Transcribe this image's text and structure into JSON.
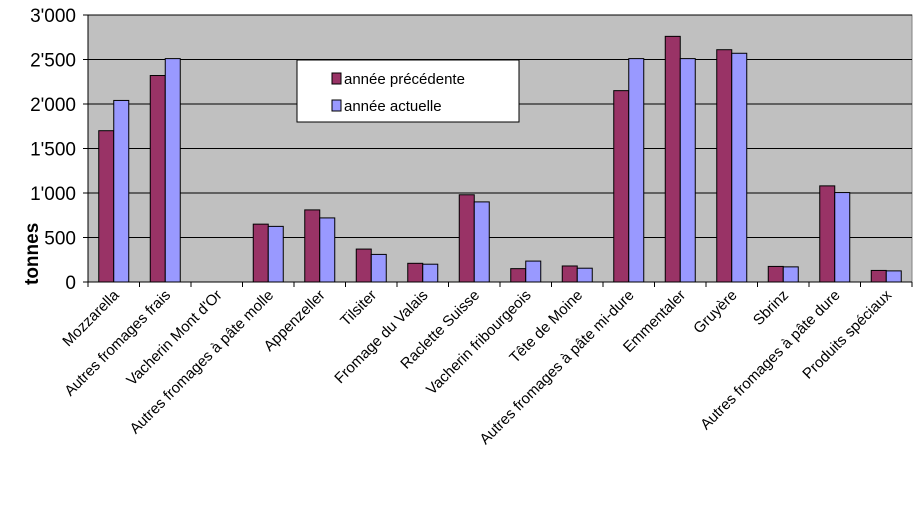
{
  "chart_data": {
    "type": "bar",
    "ylabel": "tonnes",
    "xlabel": "",
    "ylim": [
      0,
      3000
    ],
    "yticks": [
      0,
      500,
      1000,
      1500,
      2000,
      2500,
      3000
    ],
    "ytick_labels": [
      "0",
      "500",
      "1'000",
      "1'500",
      "2'000",
      "2'500",
      "3'000"
    ],
    "grid": true,
    "legend_position": "upper-center",
    "categories": [
      "Mozzarella",
      "Autres fromages frais",
      "Vacherin Mont d'Or",
      "Autres fromages à pâte molle",
      "Appenzeller",
      "Tilsiter",
      "Fromage du Valais",
      "Raclette Suisse",
      "Vacherin fribourgeois",
      "Tête de Moine",
      "Autres fromages à pâte mi-dure",
      "Emmentaler",
      "Gruyère",
      "Sbrinz",
      "Autres fromages à pâte dure",
      "Produits spéciaux"
    ],
    "series": [
      {
        "name": "année précédente",
        "color": "#993366",
        "values": [
          1700,
          2320,
          0,
          650,
          810,
          370,
          210,
          980,
          150,
          180,
          2150,
          2760,
          2610,
          175,
          1080,
          130
        ]
      },
      {
        "name": "année actuelle",
        "color": "#9999FF",
        "values": [
          2040,
          2510,
          0,
          625,
          720,
          310,
          200,
          900,
          235,
          155,
          2510,
          2510,
          2570,
          170,
          1005,
          125
        ]
      }
    ]
  }
}
